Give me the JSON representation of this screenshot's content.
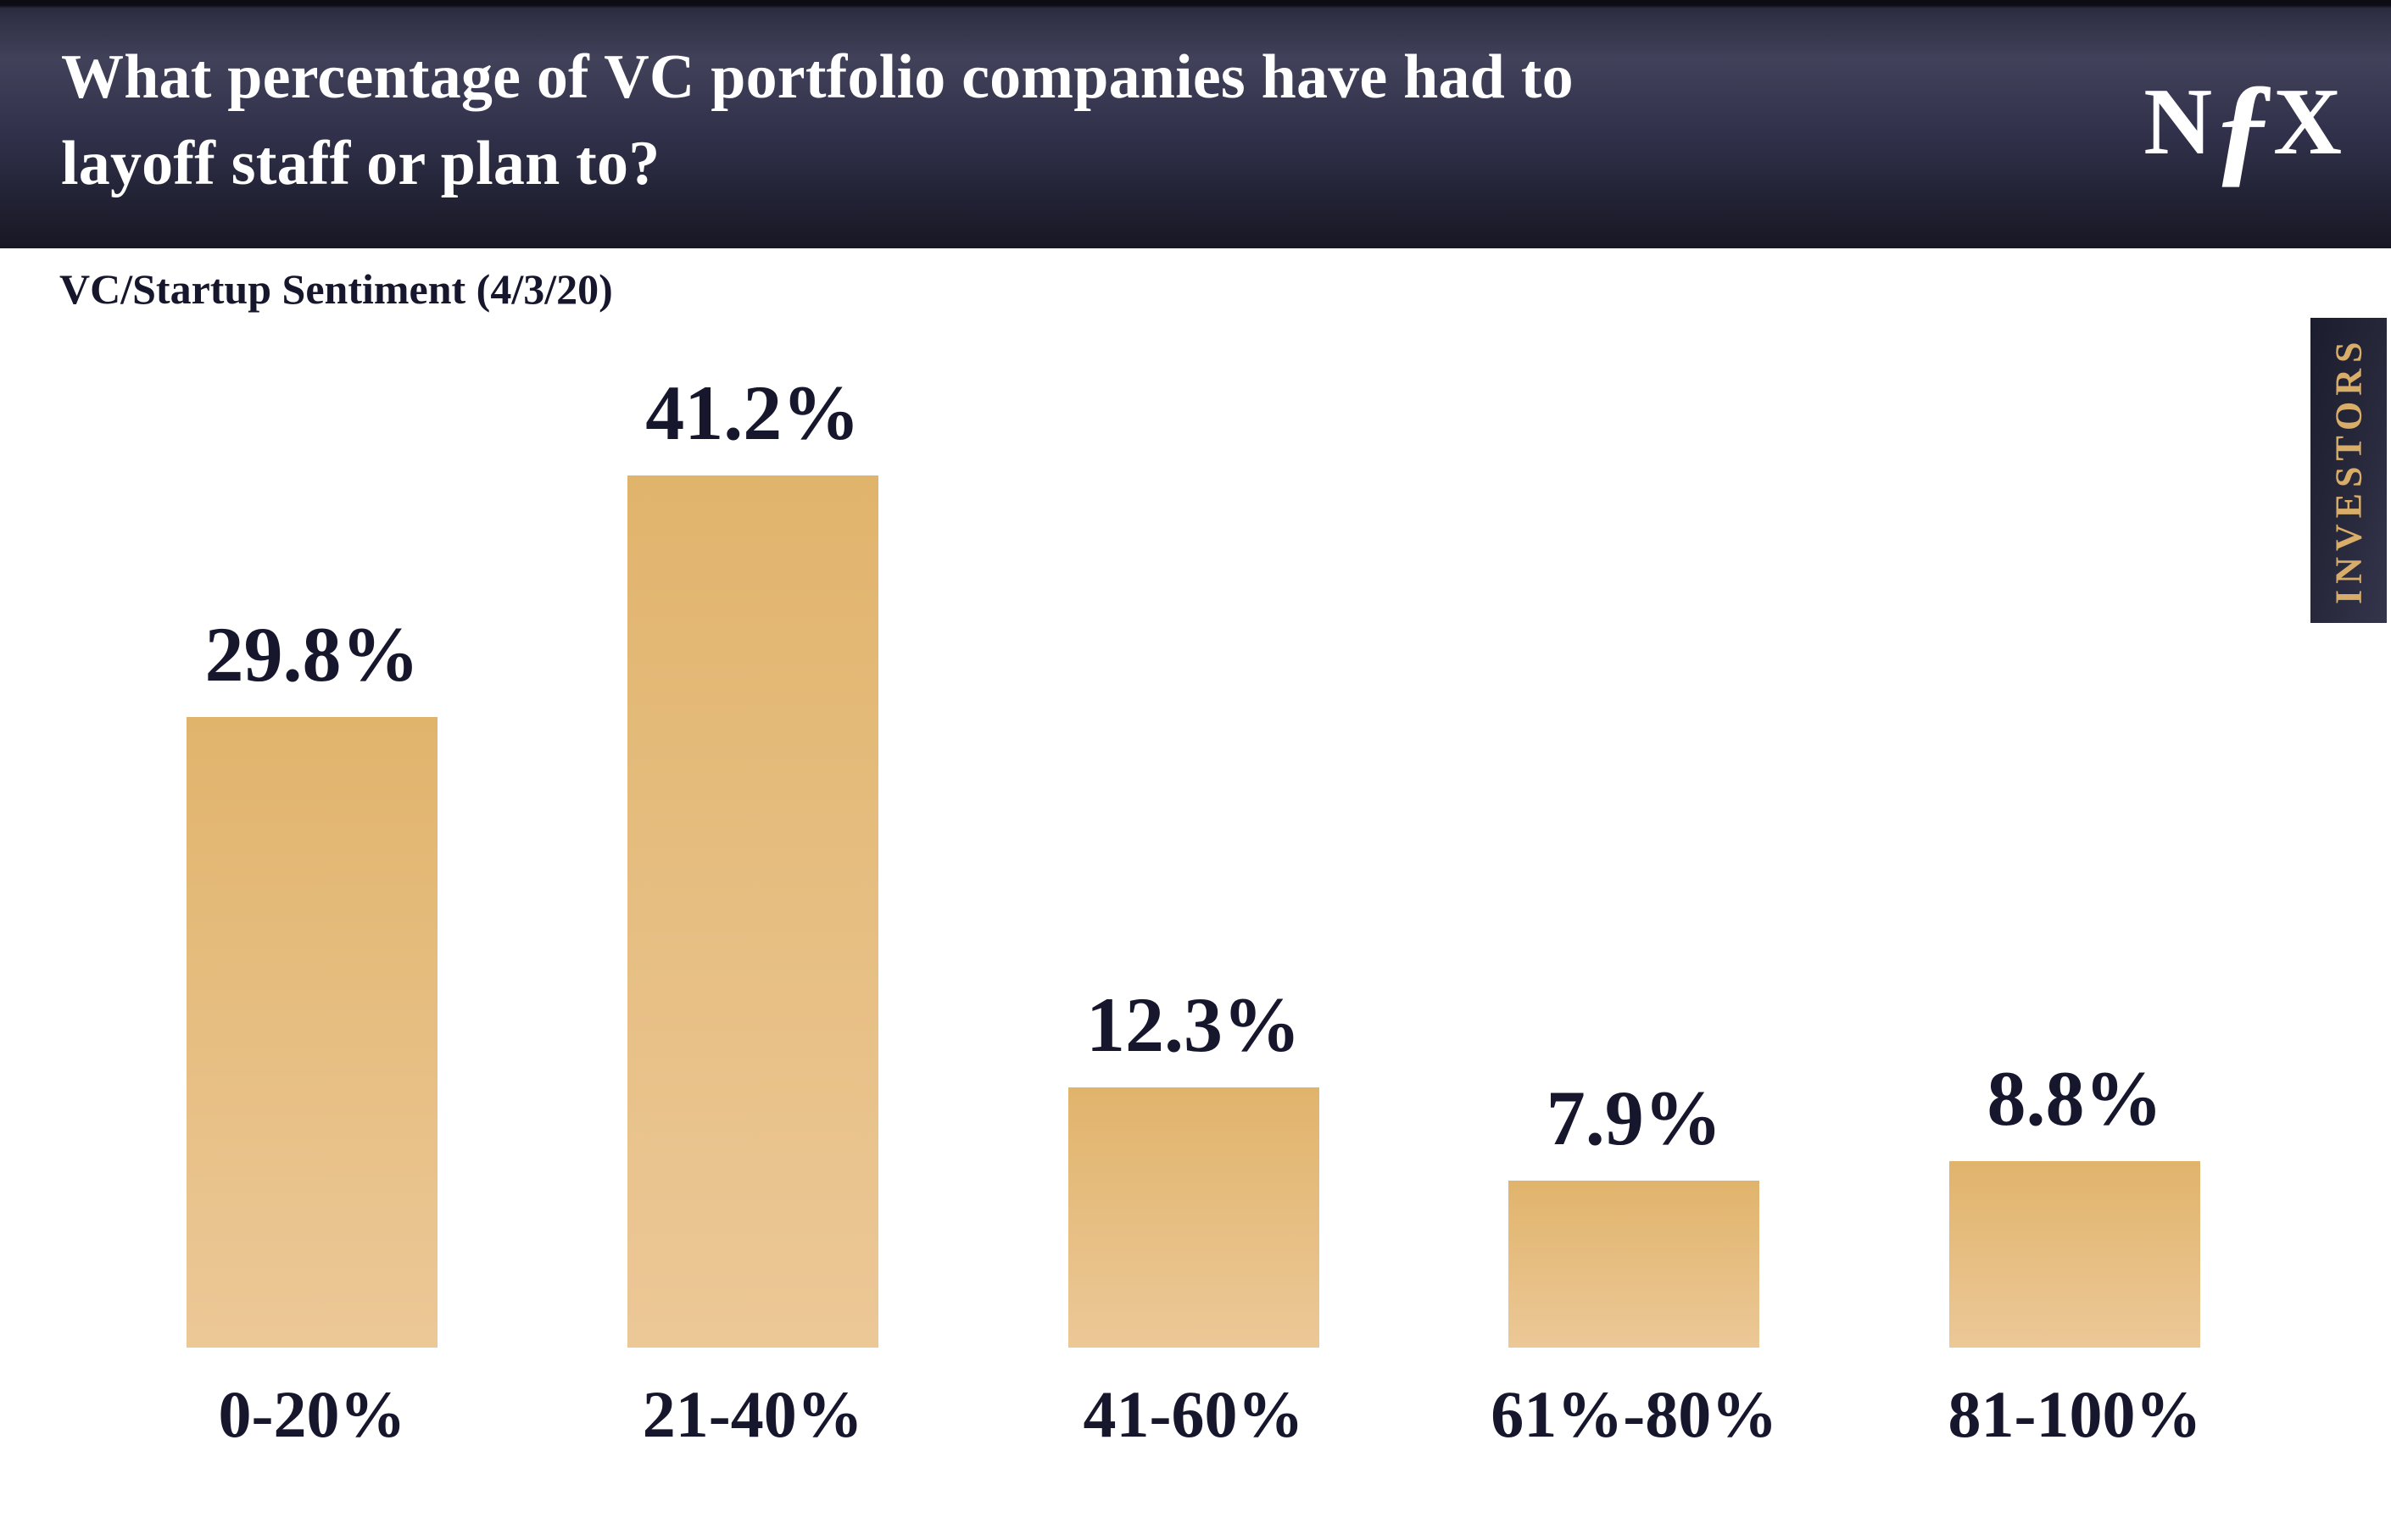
{
  "header": {
    "title_lines": [
      "What percentage of VC portfolio companies have had to",
      "layoff staff or plan to?"
    ],
    "logo": {
      "n": "N",
      "f": "ƒ",
      "x": "X"
    }
  },
  "subtitle": "VC/Startup Sentiment (4/3/20)",
  "side_tab": {
    "label": "INVESTORS"
  },
  "colors": {
    "background": "#ffffff",
    "title_text": "#ffffff",
    "navy_text": "#16162d",
    "gold_text": "#d8ad6a",
    "bar_top": "#e1b46c",
    "bar_bottom": "#ecc897"
  },
  "chart_data": {
    "type": "bar",
    "title": "What percentage of VC portfolio companies have had to layoff staff or plan to?",
    "subtitle": "VC/Startup Sentiment (4/3/20)",
    "categories": [
      "0-20%",
      "21-40%",
      "41-60%",
      "61%-80%",
      "81-100%"
    ],
    "values": [
      29.8,
      41.2,
      12.3,
      7.9,
      8.8
    ],
    "value_labels": [
      "29.8%",
      "41.2%",
      "12.3%",
      "7.9%",
      "8.8%"
    ],
    "xlabel": "",
    "ylabel": "",
    "ylim": [
      0,
      45
    ],
    "grid": false,
    "legend": "none",
    "bar_color_top": "#e1b46c",
    "bar_color_bottom": "#ecc897"
  }
}
